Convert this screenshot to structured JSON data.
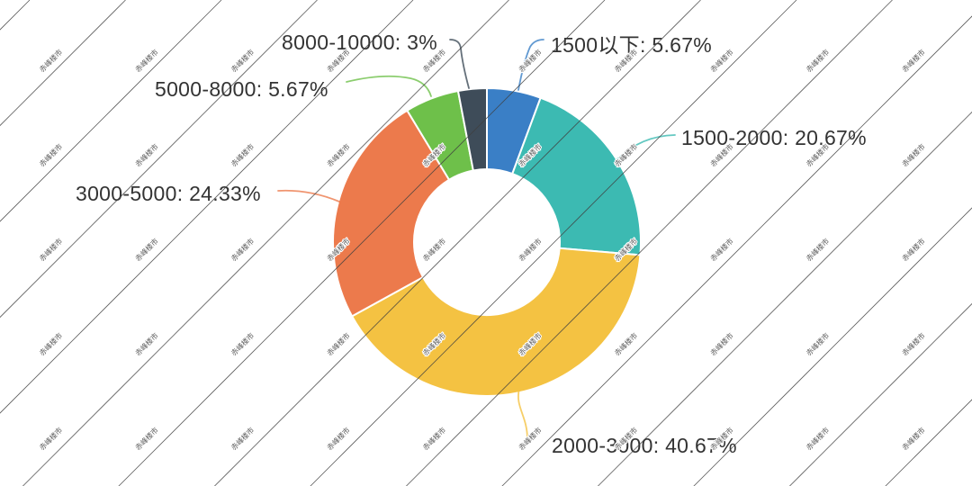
{
  "watermark": {
    "text": "赤峰楼市",
    "line_color": "#3f3f3f",
    "text_color": "#4a4a4a"
  },
  "chart_data": {
    "type": "pie",
    "title": "",
    "donut": true,
    "legend": "none",
    "label_position": "outside-with-leader-lines",
    "center": [
      541,
      269
    ],
    "outer_radius": 171,
    "inner_radius": 81,
    "start_angle_deg": 0,
    "direction": "clockwise",
    "series": [
      {
        "name": "1500以下",
        "value": 5.67,
        "color": "#3a7fc6",
        "label": "1500以下: 5.67%"
      },
      {
        "name": "1500-2000",
        "value": 20.67,
        "color": "#3cbab2",
        "label": "1500-2000: 20.67%"
      },
      {
        "name": "2000-3000",
        "value": 40.67,
        "color": "#f4c242",
        "label": "2000-3000: 40.67%"
      },
      {
        "name": "3000-5000",
        "value": 24.33,
        "color": "#ec7a4c",
        "label": "3000-5000: 24.33%"
      },
      {
        "name": "5000-8000",
        "value": 5.67,
        "color": "#6ec04a",
        "label": "5000-8000: 5.67%"
      },
      {
        "name": "8000-10000",
        "value": 3.0,
        "color": "#3e4c59",
        "label": "8000-10000: 3%"
      }
    ]
  }
}
